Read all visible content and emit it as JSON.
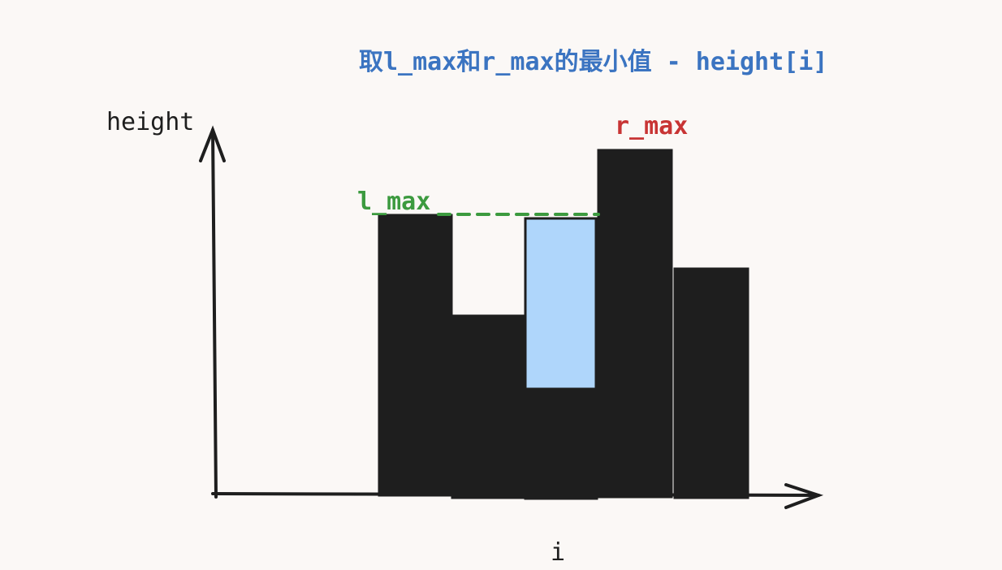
{
  "title": {
    "text": "取l_max和r_max的最小值 - height[i]",
    "color": "#3b74c1"
  },
  "axes": {
    "y_label": "height",
    "x_label": "i",
    "stroke_color": "#1e1e1e"
  },
  "labels": {
    "l_max": {
      "text": "l_max",
      "color": "#3c9a3f"
    },
    "r_max": {
      "text": "r_max",
      "color": "#c83434"
    }
  },
  "colors": {
    "bar_fill": "#1e1e1e",
    "water_fill": "#afd6fb",
    "dashed_line": "#3c9a3f",
    "background": "#fbf8f6"
  }
}
